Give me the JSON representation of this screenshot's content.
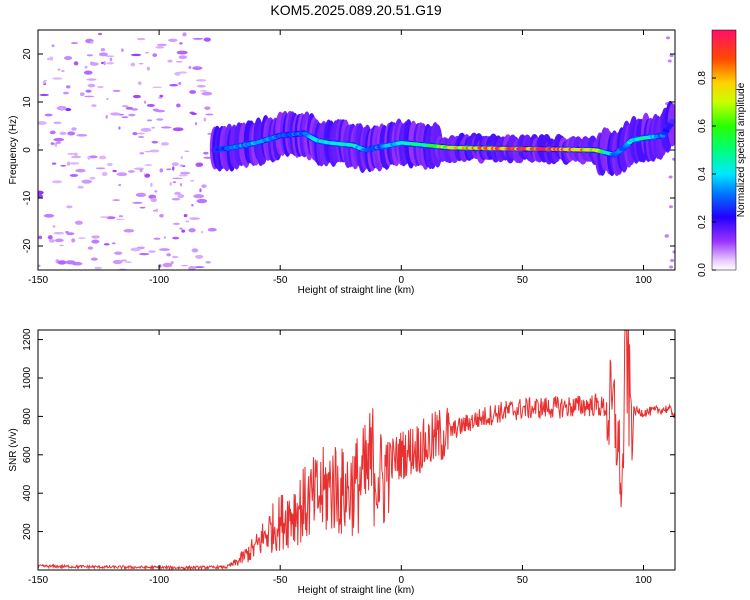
{
  "title": "KOM5.2025.089.20.51.G19",
  "chart_data": [
    {
      "type": "heatmap",
      "name": "spectrogram",
      "xlabel": "Height of straight line (km)",
      "ylabel": "Frequency (Hz)",
      "xlim": [
        -150,
        113
      ],
      "ylim": [
        -25,
        25
      ],
      "xticks": [
        -150,
        -100,
        -50,
        0,
        50,
        100
      ],
      "yticks": [
        -20,
        -10,
        0,
        10,
        20
      ],
      "colorbar": {
        "label": "Normalized spectral amplitude",
        "range": [
          0,
          1
        ],
        "ticks": [
          0.0,
          0.2,
          0.4,
          0.6,
          0.8
        ]
      },
      "ridge": {
        "description_points_x_km": [
          -77,
          -70,
          -60,
          -50,
          -40,
          -35,
          -30,
          -20,
          -15,
          -10,
          -5,
          0,
          10,
          20,
          40,
          60,
          80,
          88,
          92,
          95,
          100,
          108,
          112
        ],
        "frequency_hz": [
          0,
          0.5,
          1.5,
          3,
          3.5,
          2,
          1.5,
          1,
          0,
          0.5,
          1,
          1.5,
          1,
          0.5,
          0.3,
          0.2,
          0,
          -1,
          0.5,
          2,
          2.5,
          3,
          6
        ],
        "amplitude": [
          0.2,
          0.3,
          0.35,
          0.3,
          0.3,
          0.4,
          0.45,
          0.45,
          0.3,
          0.3,
          0.35,
          0.4,
          0.5,
          0.7,
          0.85,
          0.9,
          0.7,
          0.3,
          0.3,
          0.4,
          0.45,
          0.3,
          0.15
        ]
      }
    },
    {
      "type": "line",
      "name": "snr",
      "xlabel": "Height of straight line (km)",
      "ylabel": "SNR (v/v)",
      "xlim": [
        -150,
        113
      ],
      "ylim": [
        0,
        1250
      ],
      "xticks": [
        -150,
        -100,
        -50,
        0,
        50,
        100
      ],
      "yticks": [
        200,
        400,
        600,
        800,
        1000,
        1200
      ],
      "series": [
        {
          "name": "SNR",
          "color": "#e83030",
          "x": [
            -150,
            -120,
            -90,
            -72,
            -68,
            -60,
            -55,
            -50,
            -45,
            -40,
            -35,
            -30,
            -28,
            -25,
            -20,
            -15,
            -12,
            -10,
            -8,
            -5,
            0,
            5,
            10,
            15,
            20,
            25,
            30,
            35,
            40,
            50,
            60,
            70,
            80,
            85,
            88,
            90,
            91,
            92,
            93,
            94,
            95,
            100,
            105,
            110,
            113
          ],
          "y": [
            20,
            15,
            12,
            15,
            40,
            120,
            200,
            250,
            300,
            340,
            380,
            420,
            450,
            400,
            430,
            480,
            560,
            520,
            450,
            560,
            600,
            630,
            650,
            690,
            720,
            750,
            780,
            800,
            820,
            840,
            845,
            850,
            860,
            840,
            800,
            600,
            350,
            800,
            1200,
            900,
            830,
            820,
            830,
            840,
            810
          ]
        }
      ]
    }
  ]
}
